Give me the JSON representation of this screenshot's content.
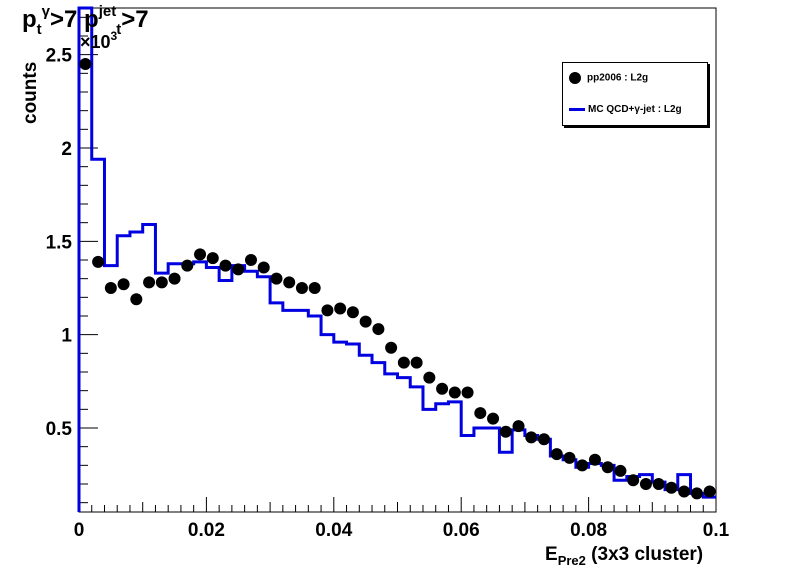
{
  "title": {
    "p": "p",
    "sub_t": "t",
    "sup_gamma": "γ",
    "gt1": ">7 p",
    "sup_jet": "jet",
    "sub_t2": "t",
    "gt2": ">7"
  },
  "ylabel": "counts",
  "exponent": {
    "base": "×10",
    "power": "3"
  },
  "xlabel": {
    "main": "E",
    "sub": "Pre2",
    "rest": " (3x3 cluster)"
  },
  "legend": {
    "data_label": "pp2006 : L2g",
    "mc_label": "MC QCD+γ-jet : L2g"
  },
  "colors": {
    "data": "#000000",
    "mc": "#0000e0"
  },
  "chart_data": {
    "type": "scatter",
    "xlim": [
      0,
      0.1
    ],
    "ylim": [
      0.05,
      2.75
    ],
    "x_ticks": [
      "0",
      "0.02",
      "0.04",
      "0.06",
      "0.08",
      "0.1"
    ],
    "y_ticks": [
      "0.5",
      "1",
      "1.5",
      "2",
      "2.5"
    ],
    "x_tick_values": [
      0,
      0.02,
      0.04,
      0.06,
      0.08,
      0.1
    ],
    "y_tick_values": [
      0.5,
      1,
      1.5,
      2,
      2.5
    ],
    "bin_width": 0.002,
    "series": [
      {
        "name": "pp2006 : L2g",
        "style": "markers",
        "x": [
          0.001,
          0.003,
          0.005,
          0.007,
          0.009,
          0.011,
          0.013,
          0.015,
          0.017,
          0.019,
          0.021,
          0.023,
          0.025,
          0.027,
          0.029,
          0.031,
          0.033,
          0.035,
          0.037,
          0.039,
          0.041,
          0.043,
          0.045,
          0.047,
          0.049,
          0.051,
          0.053,
          0.055,
          0.057,
          0.059,
          0.061,
          0.063,
          0.065,
          0.067,
          0.069,
          0.071,
          0.073,
          0.075,
          0.077,
          0.079,
          0.081,
          0.083,
          0.085,
          0.087,
          0.089,
          0.091,
          0.093,
          0.095,
          0.097,
          0.099
        ],
        "values": [
          2.45,
          1.39,
          1.25,
          1.27,
          1.19,
          1.28,
          1.28,
          1.3,
          1.37,
          1.43,
          1.41,
          1.37,
          1.35,
          1.4,
          1.36,
          1.3,
          1.28,
          1.25,
          1.25,
          1.13,
          1.14,
          1.12,
          1.07,
          1.03,
          0.93,
          0.85,
          0.85,
          0.77,
          0.71,
          0.69,
          0.69,
          0.58,
          0.55,
          0.48,
          0.51,
          0.45,
          0.44,
          0.36,
          0.34,
          0.3,
          0.33,
          0.29,
          0.27,
          0.22,
          0.2,
          0.2,
          0.18,
          0.16,
          0.15,
          0.16
        ]
      },
      {
        "name": "MC QCD+γ-jet : L2g",
        "style": "step",
        "x": [
          0.001,
          0.003,
          0.005,
          0.007,
          0.009,
          0.011,
          0.013,
          0.015,
          0.017,
          0.019,
          0.021,
          0.023,
          0.025,
          0.027,
          0.029,
          0.031,
          0.033,
          0.035,
          0.037,
          0.039,
          0.041,
          0.043,
          0.045,
          0.047,
          0.049,
          0.051,
          0.053,
          0.055,
          0.057,
          0.059,
          0.061,
          0.063,
          0.065,
          0.067,
          0.069,
          0.071,
          0.073,
          0.075,
          0.077,
          0.079,
          0.081,
          0.083,
          0.085,
          0.087,
          0.089,
          0.091,
          0.093,
          0.095,
          0.097,
          0.099
        ],
        "values": [
          2.75,
          1.94,
          1.37,
          1.53,
          1.55,
          1.59,
          1.33,
          1.38,
          1.38,
          1.39,
          1.36,
          1.29,
          1.37,
          1.34,
          1.31,
          1.17,
          1.13,
          1.13,
          1.1,
          1.0,
          0.96,
          0.95,
          0.89,
          0.85,
          0.79,
          0.77,
          0.72,
          0.6,
          0.63,
          0.64,
          0.46,
          0.5,
          0.5,
          0.37,
          0.49,
          0.46,
          0.44,
          0.35,
          0.33,
          0.29,
          0.31,
          0.3,
          0.22,
          0.24,
          0.25,
          0.21,
          0.17,
          0.25,
          0.15,
          0.13
        ]
      }
    ]
  }
}
